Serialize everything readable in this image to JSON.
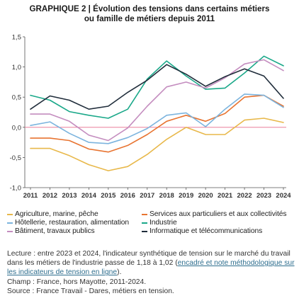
{
  "title": {
    "line1": "GRAPHIQUE 2 | Évolution des tensions dans certains métiers",
    "line2": "ou famille de métiers depuis 2011"
  },
  "chart_data": {
    "type": "line",
    "x": [
      "2011",
      "2012",
      "2013",
      "2014",
      "2015",
      "2016",
      "2017",
      "2018",
      "2019",
      "2020",
      "2021",
      "2022",
      "2023",
      "2024"
    ],
    "yticks": [
      "1,5",
      "1,0",
      "0,5",
      "0,0",
      "-0,5",
      "-1,0"
    ],
    "ylim": [
      -1.0,
      1.5
    ],
    "zero_line": true,
    "grid": false,
    "legend_position": "bottom",
    "series": [
      {
        "name": "Agriculture, marine, pêche",
        "color": "#e8b84a",
        "values": [
          -0.35,
          -0.35,
          -0.47,
          -0.62,
          -0.72,
          -0.65,
          -0.45,
          -0.2,
          0.0,
          -0.12,
          -0.12,
          0.12,
          0.15,
          0.08
        ]
      },
      {
        "name": "Services aux particuliers et aux collectivités",
        "color": "#e87431",
        "values": [
          -0.18,
          -0.18,
          -0.22,
          -0.36,
          -0.41,
          -0.3,
          -0.12,
          0.1,
          0.2,
          0.1,
          0.23,
          0.5,
          0.53,
          0.35
        ]
      },
      {
        "name": "Hôtellerie, restauration, alimentation",
        "color": "#7cb4de",
        "values": [
          0.03,
          0.09,
          -0.1,
          -0.25,
          -0.27,
          -0.17,
          -0.02,
          0.2,
          0.24,
          0.01,
          0.3,
          0.55,
          0.53,
          0.33
        ]
      },
      {
        "name": "Industrie",
        "color": "#1aa889",
        "values": [
          0.53,
          0.45,
          0.26,
          0.2,
          0.15,
          0.3,
          0.8,
          1.1,
          0.85,
          0.63,
          0.65,
          0.9,
          1.18,
          1.02
        ]
      },
      {
        "name": "Bâtiment, travaux publics",
        "color": "#c48dbf",
        "values": [
          0.22,
          0.22,
          0.1,
          -0.13,
          -0.22,
          -0.01,
          0.35,
          0.67,
          0.75,
          0.65,
          0.82,
          1.05,
          1.12,
          0.94
        ]
      },
      {
        "name": "Informatique et télécommunications",
        "color": "#202d3b",
        "values": [
          0.3,
          0.52,
          0.45,
          0.3,
          0.35,
          0.58,
          0.78,
          1.04,
          0.88,
          0.68,
          0.84,
          0.97,
          0.85,
          0.48
        ]
      }
    ]
  },
  "legend_order": [
    0,
    1,
    2,
    3,
    4,
    5
  ],
  "notes": {
    "lecture_prefix": "Lecture : entre 2023 et 2024, l'indicateur synthétique de tension sur le marché du travail dans les métiers de l'industrie passe de 1,18 à 1,02 (",
    "lecture_link": "encadré et note méthodologique sur les indicateurs de tension en ligne",
    "lecture_suffix": ").",
    "champ": "Champ : France, hors Mayotte, 2011-2024.",
    "source": "Source : France Travail - Dares, métiers en tension."
  }
}
